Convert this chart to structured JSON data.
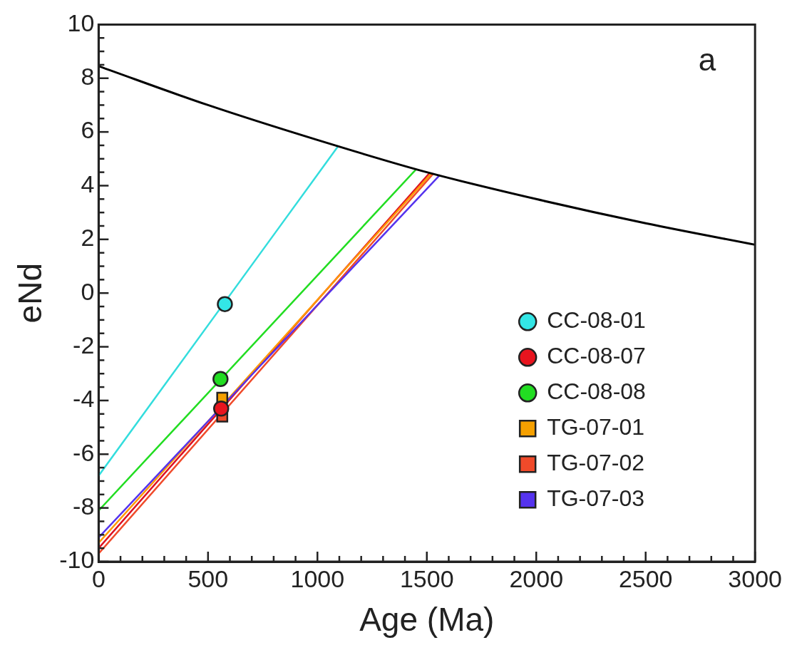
{
  "chart_data": {
    "type": "scatter",
    "xlabel": "Age (Ma)",
    "ylabel": "eNd",
    "annotations": [
      "a"
    ],
    "xlim": [
      0,
      3000
    ],
    "ylim": [
      -10,
      10
    ],
    "xticks": [
      0,
      {
        "value": 100,
        "label": null
      },
      {
        "value": 200,
        "label": null
      },
      {
        "value": 300,
        "label": null
      },
      {
        "value": 400,
        "label": null
      },
      500,
      {
        "value": 600,
        "label": null
      },
      {
        "value": 700,
        "label": null
      },
      {
        "value": 800,
        "label": null
      },
      {
        "value": 900,
        "label": null
      },
      1000,
      {
        "value": 1100,
        "label": null
      },
      {
        "value": 1200,
        "label": null
      },
      {
        "value": 1300,
        "label": null
      },
      {
        "value": 1400,
        "label": null
      },
      1500,
      {
        "value": 1600,
        "label": null
      },
      {
        "value": 1700,
        "label": null
      },
      {
        "value": 1800,
        "label": null
      },
      {
        "value": 1900,
        "label": null
      },
      2000,
      {
        "value": 2100,
        "label": null
      },
      {
        "value": 2200,
        "label": null
      },
      {
        "value": 2300,
        "label": null
      },
      {
        "value": 2400,
        "label": null
      },
      2500,
      {
        "value": 2600,
        "label": null
      },
      {
        "value": 2700,
        "label": null
      },
      {
        "value": 2800,
        "label": null
      },
      {
        "value": 2900,
        "label": null
      },
      3000
    ],
    "yticks": [
      -10,
      {
        "value": -9.5,
        "label": null
      },
      {
        "value": -9,
        "label": null
      },
      {
        "value": -8.5,
        "label": null
      },
      -8,
      {
        "value": -7.5,
        "label": null
      },
      {
        "value": -7,
        "label": null
      },
      {
        "value": -6.5,
        "label": null
      },
      -6,
      {
        "value": -5.5,
        "label": null
      },
      {
        "value": -5,
        "label": null
      },
      {
        "value": -4.5,
        "label": null
      },
      -4,
      {
        "value": -3.5,
        "label": null
      },
      {
        "value": -3,
        "label": null
      },
      {
        "value": -2.5,
        "label": null
      },
      -2,
      {
        "value": -1.5,
        "label": null
      },
      {
        "value": -1,
        "label": null
      },
      {
        "value": -0.5,
        "label": null
      },
      0,
      {
        "value": 0.5,
        "label": null
      },
      {
        "value": 1,
        "label": null
      },
      {
        "value": 1.5,
        "label": null
      },
      2,
      {
        "value": 2.5,
        "label": null
      },
      {
        "value": 3,
        "label": null
      },
      {
        "value": 3.5,
        "label": null
      },
      4,
      {
        "value": 4.5,
        "label": null
      },
      {
        "value": 5,
        "label": null
      },
      {
        "value": 5.5,
        "label": null
      },
      6,
      {
        "value": 6.5,
        "label": null
      },
      {
        "value": 7,
        "label": null
      },
      {
        "value": 7.5,
        "label": null
      },
      8,
      {
        "value": 8.5,
        "label": null
      },
      {
        "value": 9,
        "label": null
      },
      {
        "value": 9.5,
        "label": null
      },
      10
    ],
    "grid": false,
    "legend": "right",
    "series": [
      {
        "type": "line",
        "color": "#000000",
        "x": [
          0,
          500,
          1000,
          1500,
          2000,
          2500,
          3000
        ],
        "values": [
          8.45,
          7.0,
          5.7,
          4.5,
          3.5,
          2.6,
          1.8
        ]
      },
      {
        "type": "line",
        "color": "#33dddd",
        "x": [
          0,
          1093
        ],
        "values": [
          -6.8,
          5.45
        ]
      },
      {
        "type": "line",
        "color": "#22dd22",
        "x": [
          0,
          1450
        ],
        "values": [
          -8.1,
          4.6
        ]
      },
      {
        "type": "line",
        "color": "#5533ee",
        "x": [
          0,
          1560
        ],
        "values": [
          -9.1,
          4.4
        ]
      },
      {
        "type": "line",
        "color": "#ff9900",
        "x": [
          0,
          1520
        ],
        "values": [
          -9.3,
          4.45
        ]
      },
      {
        "type": "line",
        "color": "#dd1122",
        "x": [
          0,
          1510
        ],
        "values": [
          -9.5,
          4.45
        ]
      },
      {
        "type": "line",
        "color": "#f04a2a",
        "x": [
          0,
          1530
        ],
        "values": [
          -9.7,
          4.45
        ]
      },
      {
        "name": "CC-08-01",
        "marker": "circle",
        "color": "#33e6e6",
        "x": [
          577
        ],
        "values": [
          -0.41
        ]
      },
      {
        "name": "CC-08-07",
        "marker": "circle",
        "color": "#e8141e",
        "x": [
          560
        ],
        "values": [
          -4.3
        ]
      },
      {
        "name": "CC-08-08",
        "marker": "circle",
        "color": "#22dd22",
        "x": [
          557
        ],
        "values": [
          -3.2
        ]
      },
      {
        "name": "TG-07-01",
        "marker": "square",
        "color": "#f5a000",
        "x": [
          565
        ],
        "values": [
          -3.9
        ]
      },
      {
        "name": "TG-07-02",
        "marker": "square",
        "color": "#f04a2a",
        "x": [
          565
        ],
        "values": [
          -4.6
        ]
      },
      {
        "name": "TG-07-03",
        "marker": "square",
        "color": "#5533ee",
        "x": [
          null
        ],
        "values": [
          null
        ]
      }
    ]
  }
}
